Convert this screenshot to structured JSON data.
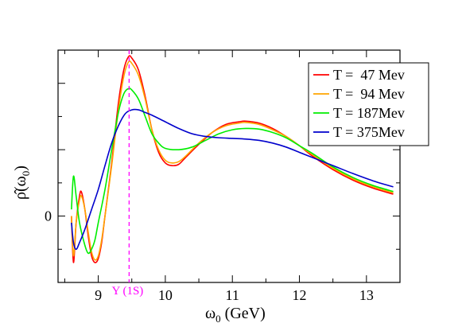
{
  "chart_data": {
    "type": "line",
    "xlabel_main": "ω",
    "xlabel_sub": "0",
    "xlabel_unit": "(GeV)",
    "ylabel_main": "ρ̂(ω",
    "ylabel_sub": "0",
    "ylabel_close": ")",
    "xlim": [
      8.4,
      13.5
    ],
    "ylim": [
      -0.5,
      1.25
    ],
    "x_ticks": [
      9,
      10,
      11,
      12,
      13
    ],
    "x_tick_labels": [
      "9",
      "10",
      "11",
      "12",
      "13"
    ],
    "y_ticks": [
      0
    ],
    "y_tick_labels": [
      "0"
    ],
    "grid": false,
    "legend_position": "top-right",
    "annotation": {
      "label": "Υ (1S)",
      "x": 9.46,
      "color": "#ff00ff",
      "style": "dashed-vertical-line"
    },
    "series": [
      {
        "name": "T =  47 Mev",
        "color": "#ff0000",
        "points": [
          [
            8.6,
            0
          ],
          [
            8.63,
            -0.35
          ],
          [
            8.67,
            -0.05
          ],
          [
            8.72,
            0.15
          ],
          [
            8.75,
            0.18
          ],
          [
            8.8,
            0.05
          ],
          [
            8.85,
            -0.15
          ],
          [
            8.9,
            -0.3
          ],
          [
            8.95,
            -0.35
          ],
          [
            9.0,
            -0.32
          ],
          [
            9.05,
            -0.2
          ],
          [
            9.1,
            0.0
          ],
          [
            9.2,
            0.4
          ],
          [
            9.3,
            0.85
          ],
          [
            9.38,
            1.1
          ],
          [
            9.45,
            1.2
          ],
          [
            9.5,
            1.19
          ],
          [
            9.6,
            1.1
          ],
          [
            9.7,
            0.9
          ],
          [
            9.8,
            0.65
          ],
          [
            9.9,
            0.48
          ],
          [
            10.0,
            0.4
          ],
          [
            10.1,
            0.38
          ],
          [
            10.2,
            0.39
          ],
          [
            10.3,
            0.44
          ],
          [
            10.5,
            0.54
          ],
          [
            10.7,
            0.63
          ],
          [
            10.9,
            0.69
          ],
          [
            11.1,
            0.71
          ],
          [
            11.2,
            0.715
          ],
          [
            11.4,
            0.7
          ],
          [
            11.6,
            0.66
          ],
          [
            11.8,
            0.6
          ],
          [
            12.0,
            0.53
          ],
          [
            12.2,
            0.45
          ],
          [
            12.5,
            0.35
          ],
          [
            12.8,
            0.27
          ],
          [
            13.1,
            0.21
          ],
          [
            13.4,
            0.165
          ]
        ]
      },
      {
        "name": "T =  94 Mev",
        "color": "#ffa500",
        "points": [
          [
            8.6,
            0
          ],
          [
            8.63,
            -0.3
          ],
          [
            8.67,
            -0.05
          ],
          [
            8.72,
            0.12
          ],
          [
            8.75,
            0.15
          ],
          [
            8.8,
            0.05
          ],
          [
            8.85,
            -0.12
          ],
          [
            8.9,
            -0.27
          ],
          [
            8.95,
            -0.33
          ],
          [
            9.0,
            -0.3
          ],
          [
            9.05,
            -0.18
          ],
          [
            9.1,
            0.0
          ],
          [
            9.2,
            0.38
          ],
          [
            9.3,
            0.8
          ],
          [
            9.38,
            1.05
          ],
          [
            9.45,
            1.16
          ],
          [
            9.5,
            1.15
          ],
          [
            9.6,
            1.06
          ],
          [
            9.7,
            0.88
          ],
          [
            9.8,
            0.65
          ],
          [
            9.9,
            0.5
          ],
          [
            10.0,
            0.42
          ],
          [
            10.1,
            0.4
          ],
          [
            10.2,
            0.41
          ],
          [
            10.3,
            0.45
          ],
          [
            10.5,
            0.55
          ],
          [
            10.7,
            0.63
          ],
          [
            10.9,
            0.68
          ],
          [
            11.1,
            0.7
          ],
          [
            11.2,
            0.705
          ],
          [
            11.4,
            0.69
          ],
          [
            11.6,
            0.65
          ],
          [
            11.8,
            0.6
          ],
          [
            12.0,
            0.53
          ],
          [
            12.2,
            0.46
          ],
          [
            12.5,
            0.36
          ],
          [
            12.8,
            0.28
          ],
          [
            13.1,
            0.22
          ],
          [
            13.4,
            0.175
          ]
        ]
      },
      {
        "name": "T = 187Mev",
        "color": "#00ee00",
        "points": [
          [
            8.6,
            0.05
          ],
          [
            8.63,
            0.3
          ],
          [
            8.67,
            0.15
          ],
          [
            8.72,
            -0.05
          ],
          [
            8.8,
            -0.22
          ],
          [
            8.85,
            -0.28
          ],
          [
            8.9,
            -0.25
          ],
          [
            8.95,
            -0.18
          ],
          [
            9.0,
            -0.05
          ],
          [
            9.1,
            0.2
          ],
          [
            9.2,
            0.5
          ],
          [
            9.3,
            0.78
          ],
          [
            9.38,
            0.92
          ],
          [
            9.45,
            0.96
          ],
          [
            9.5,
            0.95
          ],
          [
            9.6,
            0.88
          ],
          [
            9.7,
            0.75
          ],
          [
            9.8,
            0.62
          ],
          [
            9.9,
            0.55
          ],
          [
            10.0,
            0.51
          ],
          [
            10.2,
            0.5
          ],
          [
            10.4,
            0.52
          ],
          [
            10.6,
            0.57
          ],
          [
            10.8,
            0.62
          ],
          [
            11.0,
            0.65
          ],
          [
            11.2,
            0.66
          ],
          [
            11.4,
            0.655
          ],
          [
            11.6,
            0.63
          ],
          [
            11.8,
            0.59
          ],
          [
            12.0,
            0.53
          ],
          [
            12.2,
            0.47
          ],
          [
            12.5,
            0.37
          ],
          [
            12.8,
            0.29
          ],
          [
            13.1,
            0.23
          ],
          [
            13.4,
            0.185
          ]
        ]
      },
      {
        "name": "T = 375Mev",
        "color": "#0000cc",
        "points": [
          [
            8.6,
            -0.05
          ],
          [
            8.63,
            -0.2
          ],
          [
            8.67,
            -0.25
          ],
          [
            8.72,
            -0.2
          ],
          [
            8.8,
            -0.1
          ],
          [
            8.9,
            0.05
          ],
          [
            9.0,
            0.2
          ],
          [
            9.1,
            0.38
          ],
          [
            9.2,
            0.55
          ],
          [
            9.3,
            0.68
          ],
          [
            9.4,
            0.77
          ],
          [
            9.5,
            0.8
          ],
          [
            9.6,
            0.8
          ],
          [
            9.7,
            0.78
          ],
          [
            9.8,
            0.76
          ],
          [
            10.0,
            0.71
          ],
          [
            10.2,
            0.66
          ],
          [
            10.4,
            0.62
          ],
          [
            10.6,
            0.6
          ],
          [
            10.8,
            0.59
          ],
          [
            11.0,
            0.585
          ],
          [
            11.2,
            0.58
          ],
          [
            11.4,
            0.57
          ],
          [
            11.6,
            0.55
          ],
          [
            11.8,
            0.52
          ],
          [
            12.0,
            0.48
          ],
          [
            12.2,
            0.44
          ],
          [
            12.5,
            0.38
          ],
          [
            12.8,
            0.32
          ],
          [
            13.1,
            0.265
          ],
          [
            13.4,
            0.22
          ]
        ]
      }
    ]
  }
}
